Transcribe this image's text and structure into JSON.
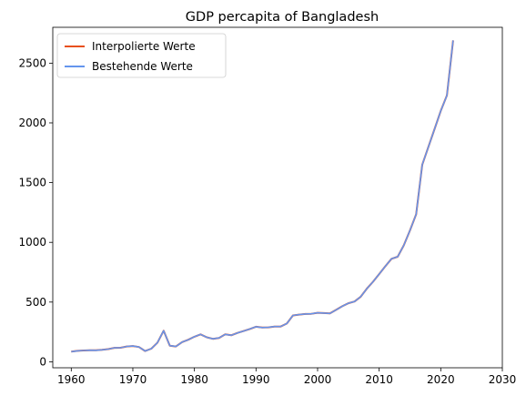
{
  "chart_data": {
    "type": "line",
    "title": "GDP percapita of Bangladesh",
    "xlabel": "",
    "ylabel": "",
    "xlim": [
      1957,
      2030
    ],
    "ylim": [
      -50,
      2800
    ],
    "xticks": [
      1960,
      1970,
      1980,
      1990,
      2000,
      2010,
      2020,
      2030
    ],
    "yticks": [
      0,
      500,
      1000,
      1500,
      2000,
      2500
    ],
    "grid": false,
    "legend_position": "top-left",
    "x": [
      1960,
      1961,
      1962,
      1963,
      1964,
      1965,
      1966,
      1967,
      1968,
      1969,
      1970,
      1971,
      1972,
      1973,
      1974,
      1975,
      1976,
      1977,
      1978,
      1979,
      1980,
      1981,
      1982,
      1983,
      1984,
      1985,
      1986,
      1987,
      1988,
      1989,
      1990,
      1991,
      1992,
      1993,
      1994,
      1995,
      1996,
      1997,
      1998,
      1999,
      2000,
      2001,
      2002,
      2003,
      2004,
      2005,
      2006,
      2007,
      2008,
      2009,
      2010,
      2011,
      2012,
      2013,
      2014,
      2015,
      2016,
      2017,
      2018,
      2019,
      2020,
      2021,
      2022
    ],
    "series": [
      {
        "name": "Interpolierte Werte",
        "color": "#e8501c",
        "values": [
          85,
          92,
          95,
          97,
          96,
          100,
          106,
          117,
          118,
          128,
          132,
          124,
          90,
          110,
          160,
          260,
          135,
          128,
          165,
          185,
          210,
          230,
          205,
          192,
          200,
          230,
          222,
          242,
          258,
          275,
          294,
          287,
          288,
          295,
          295,
          320,
          388,
          395,
          400,
          402,
          410,
          408,
          405,
          435,
          465,
          490,
          505,
          545,
          612,
          670,
          735,
          800,
          862,
          880,
          975,
          1100,
          1235,
          1650,
          1800,
          1950,
          2100,
          2230,
          2690
        ]
      },
      {
        "name": "Bestehende Werte",
        "color": "#6495ed",
        "values": [
          85,
          92,
          95,
          97,
          96,
          100,
          106,
          117,
          118,
          128,
          132,
          124,
          90,
          110,
          160,
          260,
          135,
          128,
          165,
          185,
          210,
          230,
          205,
          192,
          200,
          230,
          222,
          242,
          258,
          275,
          294,
          287,
          288,
          295,
          295,
          320,
          388,
          395,
          400,
          402,
          410,
          408,
          405,
          435,
          465,
          490,
          505,
          545,
          612,
          670,
          735,
          800,
          862,
          880,
          975,
          1100,
          1235,
          1650,
          1800,
          1950,
          2100,
          2230,
          2690
        ]
      }
    ]
  }
}
